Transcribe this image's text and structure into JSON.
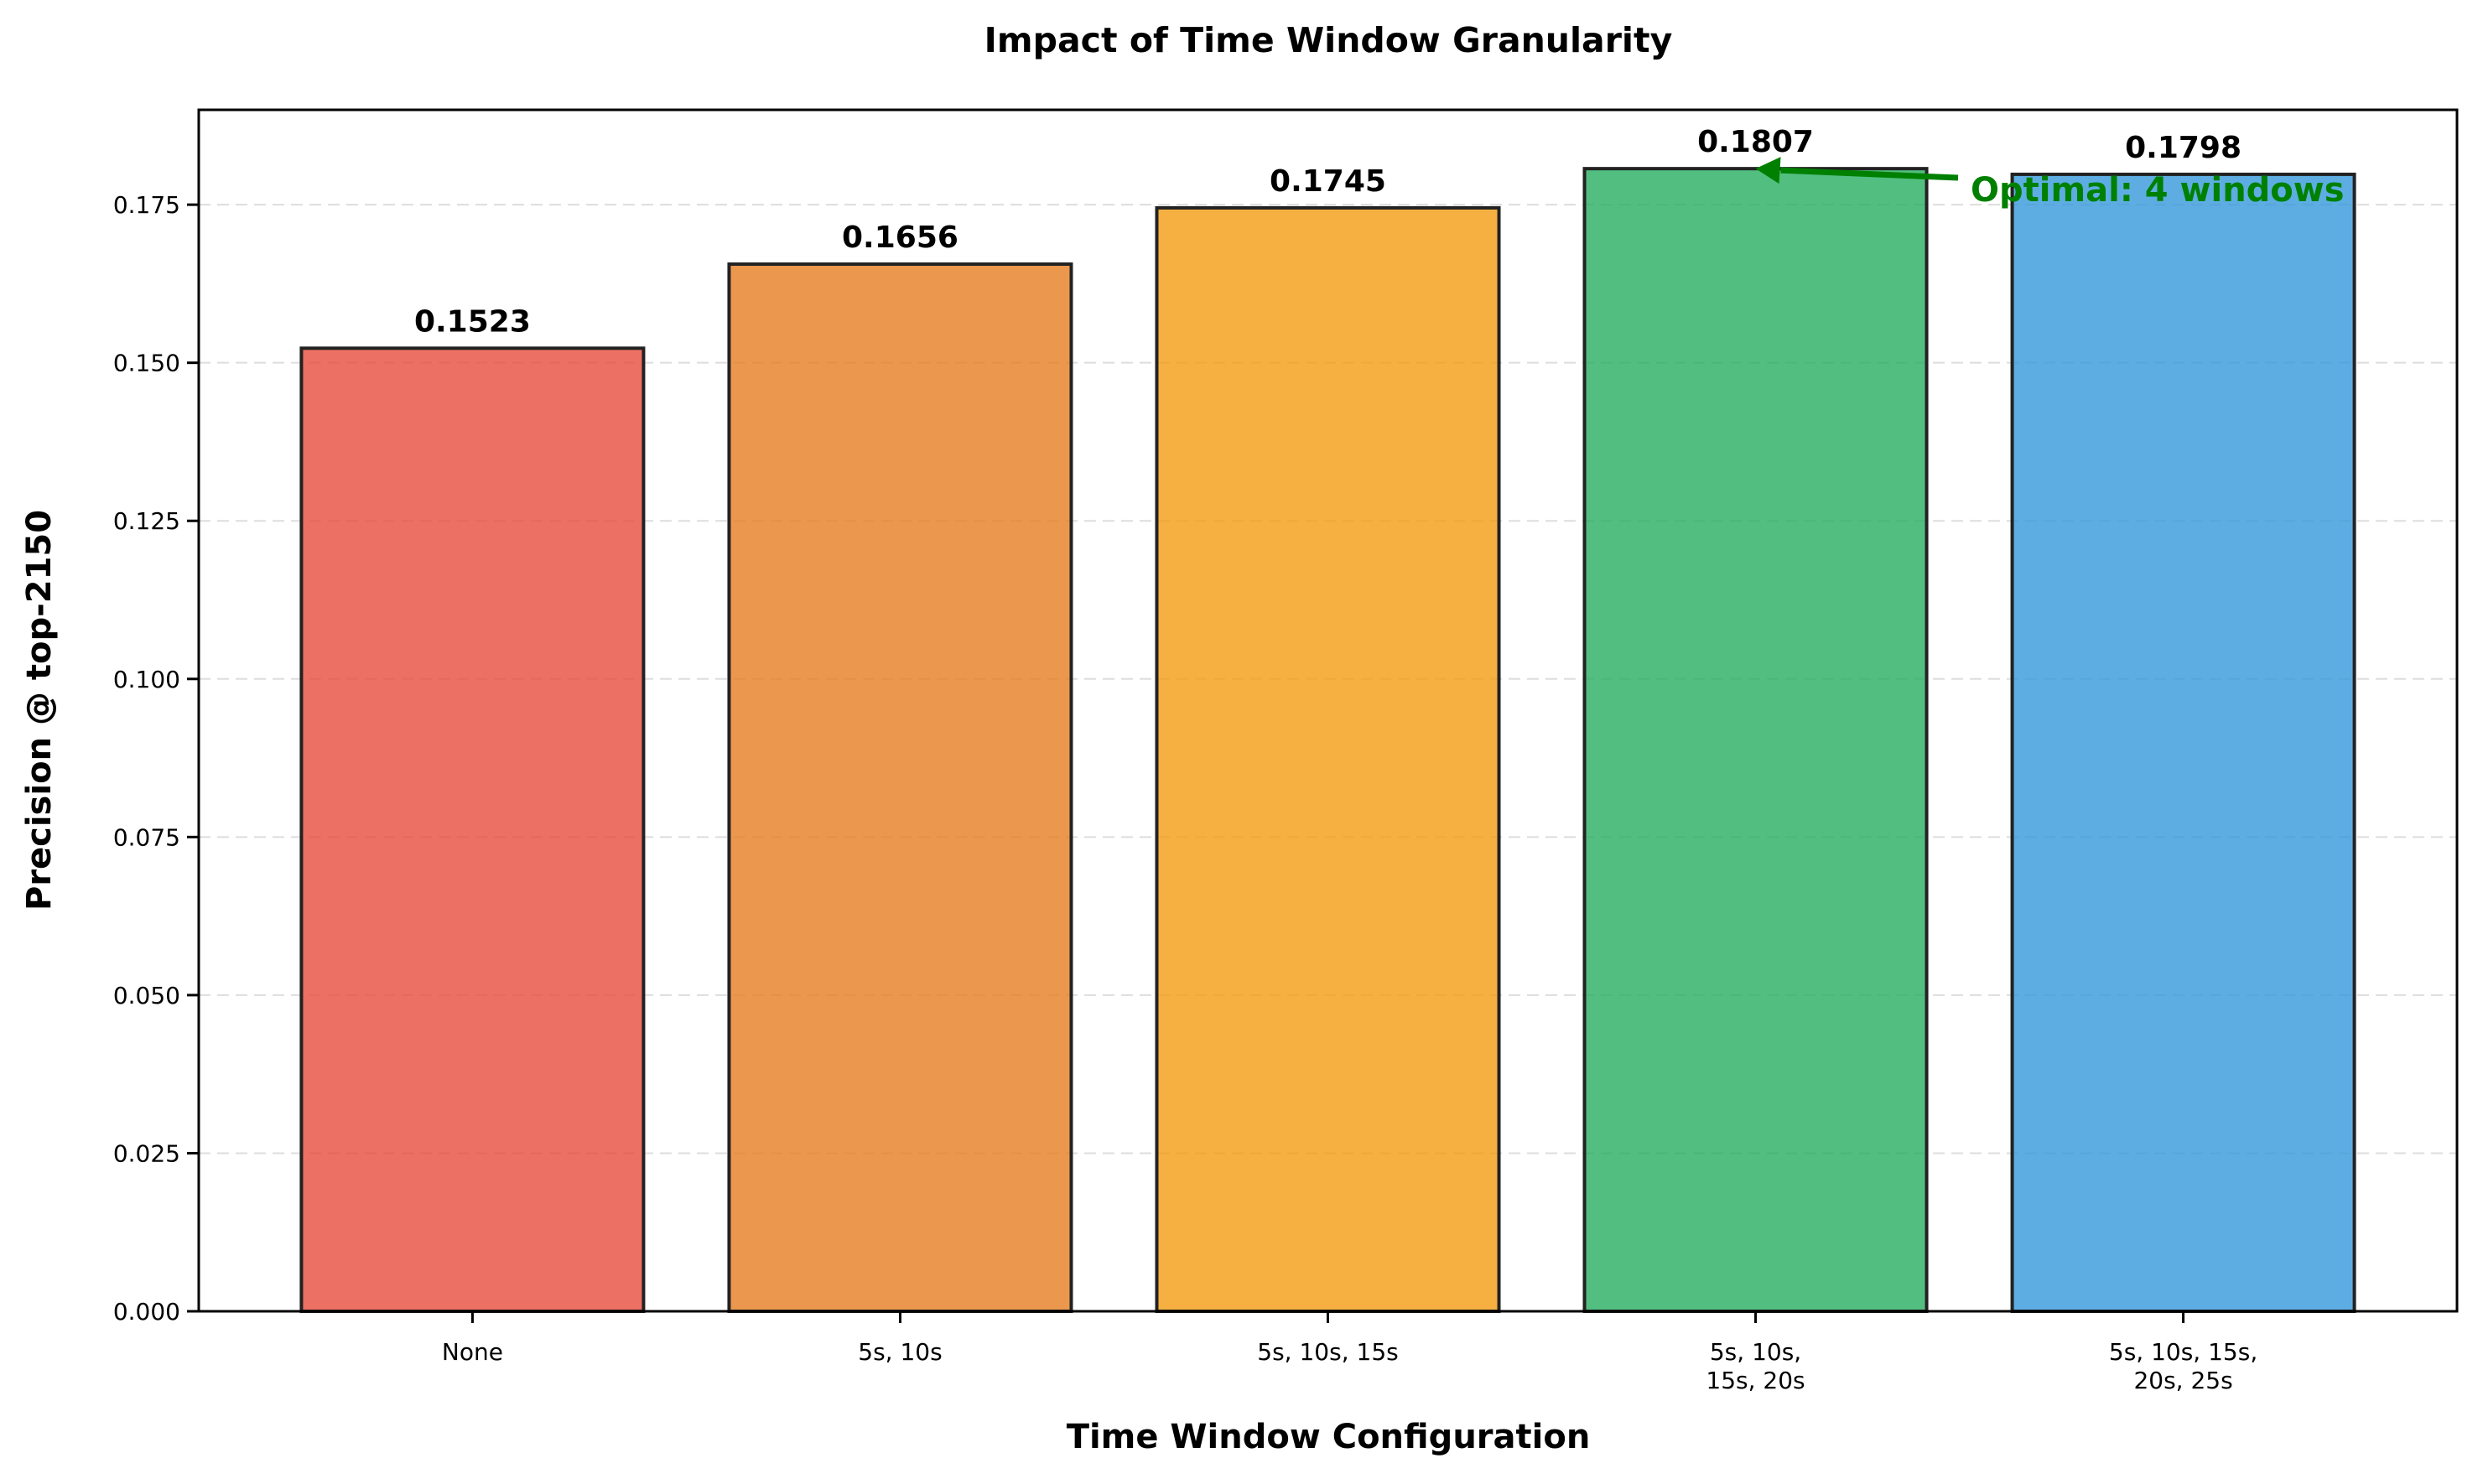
{
  "chart_data": {
    "type": "bar",
    "title": "Impact of Time Window Granularity",
    "xlabel": "Time Window Configuration",
    "ylabel": "Precision @ top-2150",
    "categories": [
      "None",
      "5s, 10s",
      "5s, 10s, 15s",
      "5s, 10s,\n15s, 20s",
      "5s, 10s, 15s,\n20s, 25s"
    ],
    "values": [
      0.1523,
      0.1656,
      0.1745,
      0.1807,
      0.1798
    ],
    "value_labels": [
      "0.1523",
      "0.1656",
      "0.1745",
      "0.1807",
      "0.1798"
    ],
    "colors": [
      "#e74c3c",
      "#e67e22",
      "#f39c12",
      "#27ae60",
      "#3498db"
    ],
    "ylim": [
      0,
      0.19
    ],
    "yticks": [
      0.0,
      0.025,
      0.05,
      0.075,
      0.1,
      0.125,
      0.15,
      0.175
    ],
    "ytick_labels": [
      "0.000",
      "0.025",
      "0.050",
      "0.075",
      "0.100",
      "0.125",
      "0.150",
      "0.175"
    ],
    "grid": "y-dashed",
    "annotation": {
      "text": "Optimal: 4 windows",
      "target_index": 3,
      "color": "#008000"
    }
  }
}
